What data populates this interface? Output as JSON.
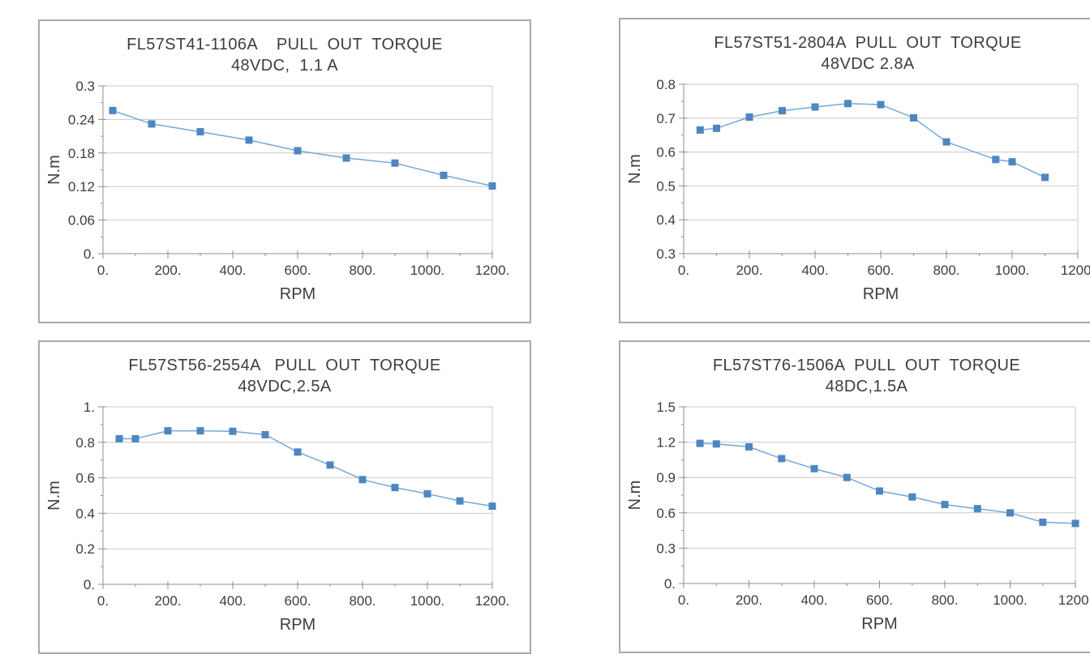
{
  "style": {
    "panel_border_color": "#a9a9a9",
    "grid_color": "#c9c9c9",
    "axis_color": "#8f8f8f",
    "text_color": "#3d3d3d",
    "line_color": "#74a9d9",
    "marker_color": "#4e86c0",
    "background": "#ffffff"
  },
  "chart_data": [
    {
      "type": "line",
      "series_name": "FL57ST41-1106A",
      "title": "FL57ST41-1106A    PULL  OUT  TORQUE",
      "subtitle": "48VDC,  1.1 A",
      "xlabel": "RPM",
      "ylabel": "N.m",
      "xlim": [
        0,
        1200
      ],
      "ylim": [
        0,
        0.3
      ],
      "x_major_step": 200,
      "x_minor_step": 100,
      "y_major_step": 0.06,
      "y_minor_step": 0.03,
      "x_tick_labels": [
        "0.",
        "200.",
        "400.",
        "600.",
        "800.",
        "1000.",
        "1200."
      ],
      "y_tick_labels": [
        "0.",
        "0.06",
        "0.12",
        "0.18",
        "0.24",
        "0.3"
      ],
      "grid": "horizontal-only",
      "legend": "none",
      "x": [
        30,
        150,
        300,
        450,
        600,
        750,
        900,
        1050,
        1200
      ],
      "y": [
        0.256,
        0.232,
        0.218,
        0.203,
        0.184,
        0.171,
        0.162,
        0.14,
        0.121
      ]
    },
    {
      "type": "line",
      "series_name": "FL57ST51-2804A",
      "title": "FL57ST51-2804A  PULL  OUT  TORQUE",
      "subtitle": "48VDC 2.8A",
      "xlabel": "RPM",
      "ylabel": "N.m",
      "xlim": [
        0,
        1200
      ],
      "ylim": [
        0.3,
        0.8
      ],
      "x_major_step": 200,
      "x_minor_step": 100,
      "y_major_step": 0.1,
      "y_minor_step": 0.05,
      "x_tick_labels": [
        "0.",
        "200.",
        "400.",
        "600.",
        "800.",
        "1000.",
        "1200."
      ],
      "y_tick_labels": [
        "0.3",
        "0.4",
        "0.5",
        "0.6",
        "0.7",
        "0.8"
      ],
      "grid": "horizontal-only",
      "legend": "none",
      "x": [
        50,
        100,
        200,
        300,
        400,
        500,
        600,
        700,
        800,
        950,
        1000,
        1100
      ],
      "y": [
        0.665,
        0.67,
        0.703,
        0.722,
        0.733,
        0.743,
        0.74,
        0.701,
        0.63,
        0.578,
        0.571,
        0.525
      ]
    },
    {
      "type": "line",
      "series_name": "FL57ST56-2554A",
      "title": "FL57ST56-2554A   PULL  OUT  TORQUE",
      "subtitle": "48VDC,2.5A",
      "xlabel": "RPM",
      "ylabel": "N.m",
      "xlim": [
        0,
        1200
      ],
      "ylim": [
        0,
        1
      ],
      "x_major_step": 200,
      "x_minor_step": 100,
      "y_major_step": 0.2,
      "y_minor_step": 0.1,
      "x_tick_labels": [
        "0.",
        "200.",
        "400.",
        "600.",
        "800.",
        "1000.",
        "1200."
      ],
      "y_tick_labels": [
        "0.",
        "0.2",
        "0.4",
        "0.6",
        "0.8",
        "1."
      ],
      "grid": "horizontal-only",
      "legend": "none",
      "x": [
        50,
        100,
        200,
        300,
        400,
        500,
        600,
        700,
        800,
        900,
        1000,
        1100,
        1200
      ],
      "y": [
        0.82,
        0.82,
        0.865,
        0.865,
        0.862,
        0.843,
        0.745,
        0.672,
        0.59,
        0.545,
        0.51,
        0.47,
        0.44
      ]
    },
    {
      "type": "line",
      "series_name": "FL57ST76-1506A",
      "title": "FL57ST76-1506A  PULL  OUT  TORQUE",
      "subtitle": "48DC,1.5A",
      "xlabel": "RPM",
      "ylabel": "N.m",
      "xlim": [
        0,
        1200
      ],
      "ylim": [
        0,
        1.5
      ],
      "x_major_step": 200,
      "x_minor_step": 100,
      "y_major_step": 0.3,
      "y_minor_step": 0.15,
      "x_tick_labels": [
        "0.",
        "200.",
        "400.",
        "600.",
        "800.",
        "1000.",
        "1200."
      ],
      "y_tick_labels": [
        "0.",
        "0.3",
        "0.6",
        "0.9",
        "1.2",
        "1.5"
      ],
      "grid": "horizontal-only",
      "legend": "none",
      "x": [
        50,
        100,
        200,
        300,
        400,
        500,
        600,
        700,
        800,
        900,
        1000,
        1100,
        1200
      ],
      "y": [
        1.19,
        1.185,
        1.16,
        1.06,
        0.975,
        0.9,
        0.785,
        0.735,
        0.67,
        0.635,
        0.6,
        0.52,
        0.51
      ]
    }
  ]
}
